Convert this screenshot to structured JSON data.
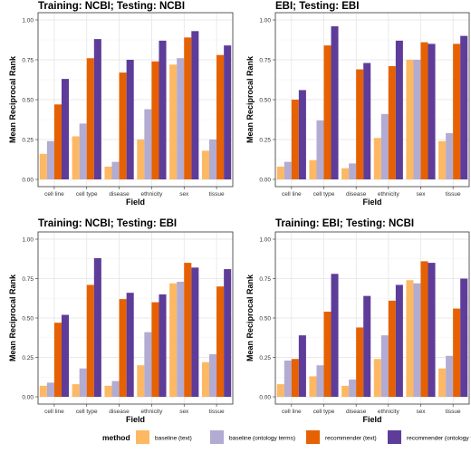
{
  "chart_data": {
    "type": "bar",
    "layout": "2x2 facets",
    "categories": [
      "cell line",
      "cell type",
      "disease",
      "ethnicity",
      "sex",
      "tissue"
    ],
    "xlabel": "Field",
    "ylabel": "Mean Reciprocal Rank",
    "ylim": [
      0,
      1.0
    ],
    "yticks": [
      "0.00",
      "0.25",
      "0.50",
      "0.75",
      "1.00"
    ],
    "grid": true,
    "legend_position": "bottom",
    "legend_title": "method",
    "methods": [
      {
        "name": "baseline (text)",
        "color": "#fdb863"
      },
      {
        "name": "baseline (ontology terms)",
        "color": "#b2abd2"
      },
      {
        "name": "recommender (text)",
        "color": "#e66101"
      },
      {
        "name": "recommender (ontology terms)",
        "color": "#5e3c99"
      }
    ],
    "panels": [
      {
        "title": "Training: NCBI; Testing: NCBI",
        "series": [
          {
            "name": "baseline (text)",
            "values": [
              0.16,
              0.27,
              0.08,
              0.25,
              0.72,
              0.18
            ]
          },
          {
            "name": "baseline (ontology terms)",
            "values": [
              0.24,
              0.35,
              0.11,
              0.44,
              0.76,
              0.25
            ]
          },
          {
            "name": "recommender (text)",
            "values": [
              0.47,
              0.76,
              0.67,
              0.74,
              0.89,
              0.78
            ]
          },
          {
            "name": "recommender (ontology terms)",
            "values": [
              0.63,
              0.88,
              0.75,
              0.87,
              0.93,
              0.84
            ]
          }
        ]
      },
      {
        "title": "EBI; Testing: EBI",
        "series": [
          {
            "name": "baseline (text)",
            "values": [
              0.08,
              0.12,
              0.07,
              0.26,
              0.75,
              0.24
            ]
          },
          {
            "name": "baseline (ontology terms)",
            "values": [
              0.11,
              0.37,
              0.1,
              0.41,
              0.75,
              0.29
            ]
          },
          {
            "name": "recommender (text)",
            "values": [
              0.5,
              0.84,
              0.69,
              0.71,
              0.86,
              0.85
            ]
          },
          {
            "name": "recommender (ontology terms)",
            "values": [
              0.56,
              0.96,
              0.73,
              0.87,
              0.85,
              0.9
            ]
          }
        ]
      },
      {
        "title": "Training: NCBI; Testing: EBI",
        "series": [
          {
            "name": "baseline (text)",
            "values": [
              0.07,
              0.08,
              0.07,
              0.2,
              0.72,
              0.22
            ]
          },
          {
            "name": "baseline (ontology terms)",
            "values": [
              0.09,
              0.18,
              0.1,
              0.41,
              0.73,
              0.27
            ]
          },
          {
            "name": "recommender (text)",
            "values": [
              0.47,
              0.71,
              0.62,
              0.6,
              0.85,
              0.7
            ]
          },
          {
            "name": "recommender (ontology terms)",
            "values": [
              0.52,
              0.88,
              0.66,
              0.65,
              0.82,
              0.81
            ]
          }
        ]
      },
      {
        "title": "Training: EBI; Testing: NCBI",
        "series": [
          {
            "name": "baseline (text)",
            "values": [
              0.08,
              0.13,
              0.07,
              0.24,
              0.74,
              0.18
            ]
          },
          {
            "name": "baseline (ontology terms)",
            "values": [
              0.23,
              0.2,
              0.11,
              0.39,
              0.72,
              0.26
            ]
          },
          {
            "name": "recommender (text)",
            "values": [
              0.24,
              0.54,
              0.44,
              0.61,
              0.86,
              0.56
            ]
          },
          {
            "name": "recommender (ontology terms)",
            "values": [
              0.39,
              0.78,
              0.64,
              0.71,
              0.85,
              0.75
            ]
          }
        ]
      }
    ]
  }
}
